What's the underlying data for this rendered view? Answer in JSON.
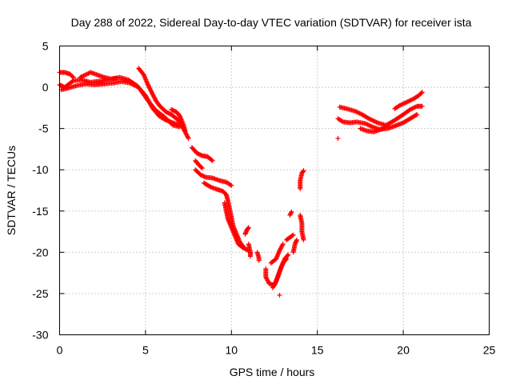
{
  "chart_data": {
    "type": "scatter",
    "title": "Day 288 of 2022, Sidereal Day-to-day VTEC variation (SDTVAR) for receiver ista",
    "xlabel": "GPS time / hours",
    "ylabel": "SDTVAR / TECUs",
    "xlim": [
      0,
      25
    ],
    "ylim": [
      -30,
      5
    ],
    "xticks": [
      0,
      5,
      10,
      15,
      20,
      25
    ],
    "yticks": [
      5,
      0,
      -5,
      -10,
      -15,
      -20,
      -25,
      -30
    ],
    "grid": true,
    "marker": "plus",
    "series_color": "#ff0000",
    "series": [
      {
        "name": "SDTVAR",
        "tracks": [
          [
            [
              0.0,
              0.3
            ],
            [
              0.3,
              0.0
            ],
            [
              0.8,
              0.8
            ],
            [
              1.3,
              0.9
            ],
            [
              1.8,
              0.6
            ],
            [
              2.5,
              0.8
            ],
            [
              3.0,
              1.0
            ],
            [
              3.5,
              1.2
            ],
            [
              4.0,
              0.9
            ],
            [
              4.5,
              0.2
            ],
            [
              5.0,
              -1.0
            ],
            [
              5.4,
              -2.5
            ],
            [
              5.8,
              -3.5
            ],
            [
              6.2,
              -4.0
            ],
            [
              6.6,
              -4.3
            ],
            [
              7.0,
              -4.6
            ]
          ],
          [
            [
              0.1,
              -0.3
            ],
            [
              0.5,
              -0.1
            ],
            [
              1.0,
              0.2
            ],
            [
              1.5,
              0.4
            ],
            [
              2.0,
              0.3
            ],
            [
              2.6,
              0.4
            ],
            [
              3.1,
              0.5
            ],
            [
              3.6,
              0.7
            ],
            [
              4.1,
              0.5
            ],
            [
              4.6,
              0.0
            ],
            [
              5.1,
              -1.5
            ],
            [
              5.6,
              -2.8
            ],
            [
              6.1,
              -3.6
            ],
            [
              6.6,
              -4.6
            ],
            [
              7.0,
              -4.8
            ]
          ],
          [
            [
              0.0,
              1.8
            ],
            [
              0.3,
              1.8
            ],
            [
              0.6,
              1.6
            ],
            [
              0.8,
              1.2
            ]
          ],
          [
            [
              1.2,
              1.2
            ],
            [
              1.8,
              1.8
            ],
            [
              2.2,
              1.5
            ],
            [
              2.6,
              1.2
            ],
            [
              3.0,
              1.0
            ],
            [
              3.3,
              1.1
            ]
          ],
          [
            [
              4.6,
              2.3
            ],
            [
              4.9,
              1.5
            ],
            [
              5.1,
              0.5
            ],
            [
              5.4,
              -0.8
            ],
            [
              5.6,
              -1.6
            ],
            [
              5.8,
              -2.2
            ],
            [
              6.0,
              -2.6
            ],
            [
              6.2,
              -3.0
            ],
            [
              6.5,
              -3.3
            ],
            [
              6.8,
              -3.8
            ],
            [
              7.0,
              -4.2
            ],
            [
              7.2,
              -5.0
            ],
            [
              7.4,
              -5.8
            ],
            [
              7.5,
              -6.2
            ]
          ],
          [
            [
              6.5,
              -2.7
            ],
            [
              6.8,
              -3.0
            ],
            [
              7.0,
              -3.5
            ],
            [
              7.2,
              -4.5
            ],
            [
              7.3,
              -5.3
            ]
          ],
          [
            [
              7.7,
              -7.3
            ],
            [
              8.0,
              -8.0
            ],
            [
              8.3,
              -8.3
            ],
            [
              8.6,
              -8.4
            ],
            [
              8.9,
              -8.9
            ]
          ],
          [
            [
              7.9,
              -8.9
            ],
            [
              8.1,
              -9.4
            ],
            [
              8.3,
              -9.8
            ]
          ],
          [
            [
              7.9,
              -10.0
            ],
            [
              8.2,
              -10.6
            ],
            [
              8.5,
              -10.9
            ],
            [
              8.9,
              -11.0
            ],
            [
              9.3,
              -11.3
            ],
            [
              9.7,
              -11.5
            ],
            [
              10.0,
              -11.9
            ]
          ],
          [
            [
              8.4,
              -11.6
            ],
            [
              8.8,
              -12.1
            ],
            [
              9.2,
              -12.4
            ],
            [
              9.5,
              -12.6
            ],
            [
              9.7,
              -13.0
            ],
            [
              9.8,
              -13.8
            ],
            [
              9.9,
              -14.8
            ],
            [
              10.0,
              -15.8
            ],
            [
              10.1,
              -16.8
            ],
            [
              10.3,
              -17.8
            ],
            [
              10.5,
              -18.8
            ],
            [
              10.8,
              -19.6
            ],
            [
              11.0,
              -19.8
            ]
          ],
          [
            [
              9.6,
              -14.0
            ],
            [
              9.7,
              -15.0
            ],
            [
              9.8,
              -16.0
            ],
            [
              10.0,
              -17.0
            ],
            [
              10.2,
              -18.0
            ],
            [
              10.4,
              -19.0
            ],
            [
              10.7,
              -19.5
            ]
          ],
          [
            [
              10.8,
              -17.8
            ],
            [
              10.9,
              -17.3
            ],
            [
              11.0,
              -17.0
            ]
          ],
          [
            [
              11.0,
              -19.0
            ],
            [
              11.1,
              -20.0
            ],
            [
              11.1,
              -20.5
            ]
          ],
          [
            [
              11.5,
              -20.0
            ],
            [
              11.6,
              -20.7
            ],
            [
              11.6,
              -21.0
            ]
          ],
          [
            [
              12.0,
              -22.0
            ],
            [
              12.0,
              -23.0
            ],
            [
              12.2,
              -23.8
            ],
            [
              12.5,
              -24.0
            ],
            [
              12.7,
              -23.0
            ],
            [
              12.9,
              -21.8
            ],
            [
              13.1,
              -20.8
            ],
            [
              13.3,
              -20.3
            ]
          ],
          [
            [
              12.4,
              -24.3
            ],
            [
              12.6,
              -23.5
            ],
            [
              12.8,
              -22.3
            ],
            [
              13.0,
              -21.3
            ],
            [
              13.2,
              -20.8
            ]
          ],
          [
            [
              12.3,
              -21.3
            ],
            [
              12.6,
              -20.8
            ],
            [
              12.8,
              -19.8
            ],
            [
              13.0,
              -19.0
            ]
          ],
          [
            [
              13.2,
              -18.5
            ],
            [
              13.4,
              -18.2
            ],
            [
              13.6,
              -17.9
            ]
          ],
          [
            [
              12.8,
              -25.2
            ]
          ],
          [
            [
              13.6,
              -20.0
            ],
            [
              13.7,
              -19.0
            ],
            [
              13.8,
              -18.5
            ]
          ],
          [
            [
              13.4,
              -15.5
            ],
            [
              13.5,
              -15.1
            ]
          ],
          [
            [
              14.0,
              -12.3
            ],
            [
              14.0,
              -11.3
            ],
            [
              14.1,
              -10.4
            ],
            [
              14.2,
              -10.1
            ]
          ],
          [
            [
              14.0,
              -15.5
            ],
            [
              14.1,
              -16.5
            ],
            [
              14.1,
              -17.5
            ],
            [
              14.2,
              -18.5
            ]
          ],
          [
            [
              16.2,
              -6.2
            ]
          ],
          [
            [
              16.2,
              -3.8
            ],
            [
              16.5,
              -4.2
            ],
            [
              16.9,
              -4.3
            ],
            [
              17.3,
              -4.2
            ],
            [
              17.8,
              -4.4
            ],
            [
              18.2,
              -4.8
            ],
            [
              18.6,
              -5.1
            ],
            [
              19.1,
              -5.0
            ],
            [
              19.5,
              -4.7
            ],
            [
              20.0,
              -4.3
            ],
            [
              20.4,
              -3.8
            ],
            [
              20.8,
              -3.3
            ]
          ],
          [
            [
              16.3,
              -2.4
            ],
            [
              16.7,
              -2.6
            ],
            [
              17.2,
              -2.9
            ],
            [
              17.6,
              -3.3
            ],
            [
              18.0,
              -3.8
            ],
            [
              18.5,
              -4.3
            ],
            [
              19.0,
              -4.6
            ],
            [
              19.5,
              -4.0
            ],
            [
              20.0,
              -3.3
            ],
            [
              20.4,
              -2.7
            ],
            [
              20.8,
              -2.3
            ],
            [
              21.1,
              -2.3
            ]
          ],
          [
            [
              17.5,
              -5.0
            ],
            [
              17.9,
              -5.3
            ],
            [
              18.3,
              -5.4
            ],
            [
              18.7,
              -5.1
            ],
            [
              19.1,
              -4.7
            ]
          ],
          [
            [
              19.5,
              -2.6
            ],
            [
              19.8,
              -2.2
            ],
            [
              20.2,
              -1.8
            ],
            [
              20.6,
              -1.4
            ],
            [
              20.9,
              -1.0
            ],
            [
              21.1,
              -0.6
            ]
          ]
        ]
      }
    ]
  }
}
